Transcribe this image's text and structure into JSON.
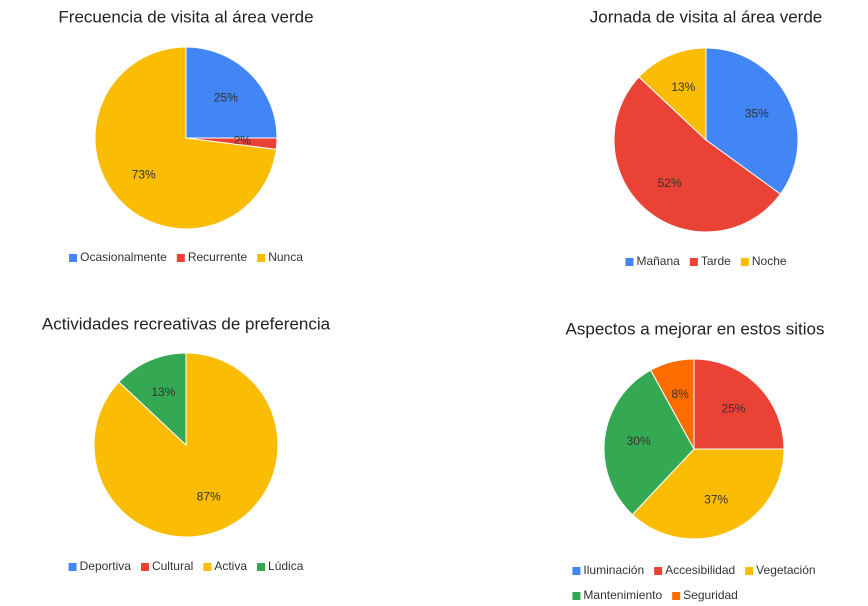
{
  "chart_data": [
    {
      "type": "pie",
      "title": "Frecuencia de visita al área verde",
      "categories": [
        "Ocasionalmente",
        "Recurrente",
        "Nunca"
      ],
      "values": [
        25,
        2,
        73
      ],
      "value_labels": [
        "25%",
        "2%",
        "73%"
      ],
      "colors": [
        "#4285f4",
        "#ea4335",
        "#fbbc04"
      ]
    },
    {
      "type": "pie",
      "title": "Jornada de visita al área verde",
      "categories": [
        "Mañana",
        "Tarde",
        "Noche"
      ],
      "values": [
        35,
        52,
        13
      ],
      "value_labels": [
        "35%",
        "52%",
        "13%"
      ],
      "colors": [
        "#4285f4",
        "#ea4335",
        "#fbbc04"
      ]
    },
    {
      "type": "pie",
      "title": "Actividades recreativas de preferencia",
      "categories": [
        "Deportiva",
        "Cultural",
        "Activa",
        "Lúdica"
      ],
      "values": [
        0,
        0,
        87,
        13
      ],
      "value_labels": [
        null,
        null,
        "87%",
        "13%"
      ],
      "colors": [
        "#4285f4",
        "#ea4335",
        "#fbbc04",
        "#34a853"
      ]
    },
    {
      "type": "pie",
      "title": "Aspectos a mejorar en estos sitios",
      "categories": [
        "Iluminación",
        "Accesibilidad",
        "Vegetación",
        "Mantenimiento",
        "Seguridad"
      ],
      "values": [
        0,
        25,
        37,
        30,
        8
      ],
      "value_labels": [
        null,
        "25%",
        "37%",
        "30%",
        "8%"
      ],
      "colors": [
        "#4285f4",
        "#ea4335",
        "#fbbc04",
        "#34a853",
        "#ff6d01"
      ]
    }
  ]
}
